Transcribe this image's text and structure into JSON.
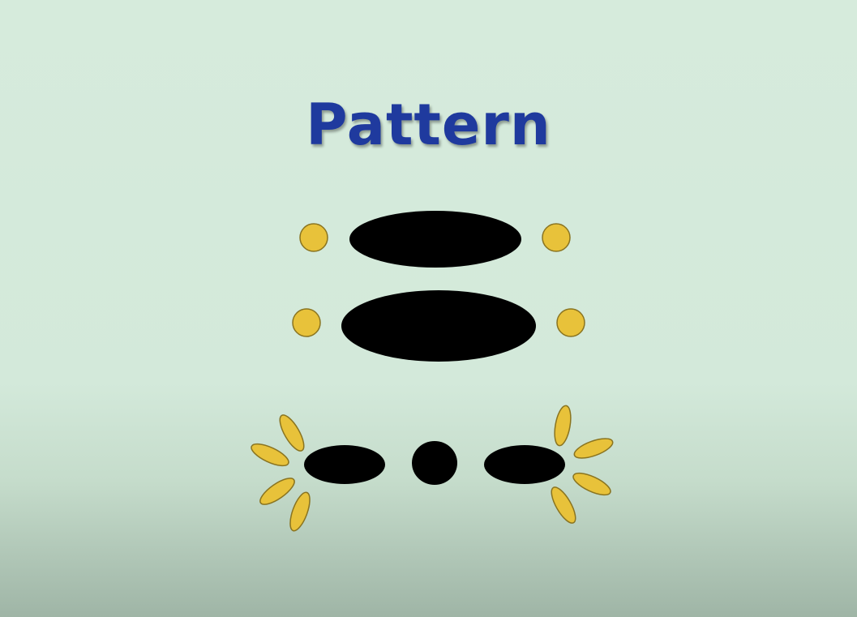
{
  "slide": {
    "title": "Pattern"
  },
  "colors": {
    "background": "#d6ebdc",
    "title": "#1f3a9e",
    "large_shapes": "#000000",
    "small_shapes": "#e8c23a",
    "small_shape_outline": "#8a7420"
  }
}
